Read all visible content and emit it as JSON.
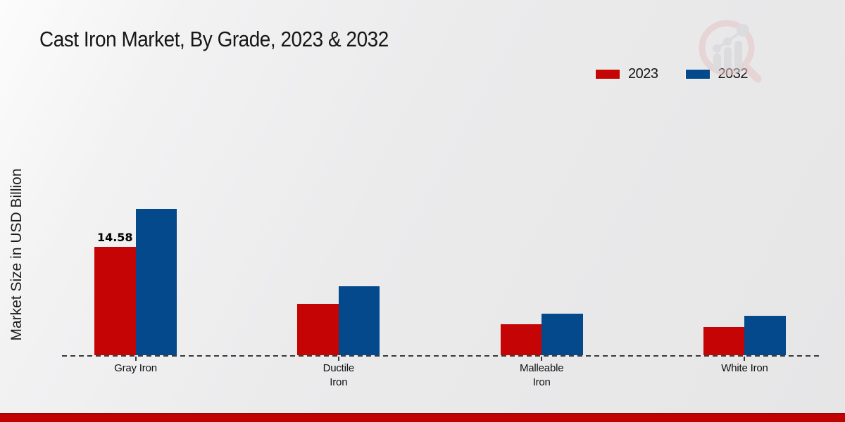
{
  "title": "Cast Iron Market, By Grade, 2023 & 2032",
  "y_axis_label": "Market Size in USD Billion",
  "legend": [
    {
      "label": "2023",
      "color": "#c50505"
    },
    {
      "label": "2032",
      "color": "#03498b"
    }
  ],
  "colors": {
    "bar_2023": "#c50505",
    "bar_2032": "#03498b",
    "footer_strip": "#c00202",
    "axis_line": "#3a3a3a"
  },
  "chart_data": {
    "type": "bar",
    "title": "Cast Iron Market, By Grade, 2023 & 2032",
    "ylabel": "Market Size in USD Billion",
    "xlabel": "",
    "categories": [
      "Gray Iron",
      "Ductile Iron",
      "Malleable Iron",
      "White Iron"
    ],
    "category_lines": [
      [
        "Gray Iron"
      ],
      [
        "Ductile",
        "Iron"
      ],
      [
        "Malleable",
        "Iron"
      ],
      [
        "White Iron"
      ]
    ],
    "series": [
      {
        "name": "2023",
        "color": "#c50505",
        "values": [
          14.58,
          6.9,
          4.2,
          3.8
        ],
        "labels": [
          "14.58",
          "",
          "",
          ""
        ]
      },
      {
        "name": "2032",
        "color": "#03498b",
        "values": [
          19.7,
          9.3,
          5.6,
          5.3
        ],
        "labels": [
          "",
          "",
          "",
          ""
        ]
      }
    ],
    "ylim": [
      0,
      21
    ],
    "grid": false,
    "legend_position": "top-right",
    "x_axis_style": "dashed"
  }
}
